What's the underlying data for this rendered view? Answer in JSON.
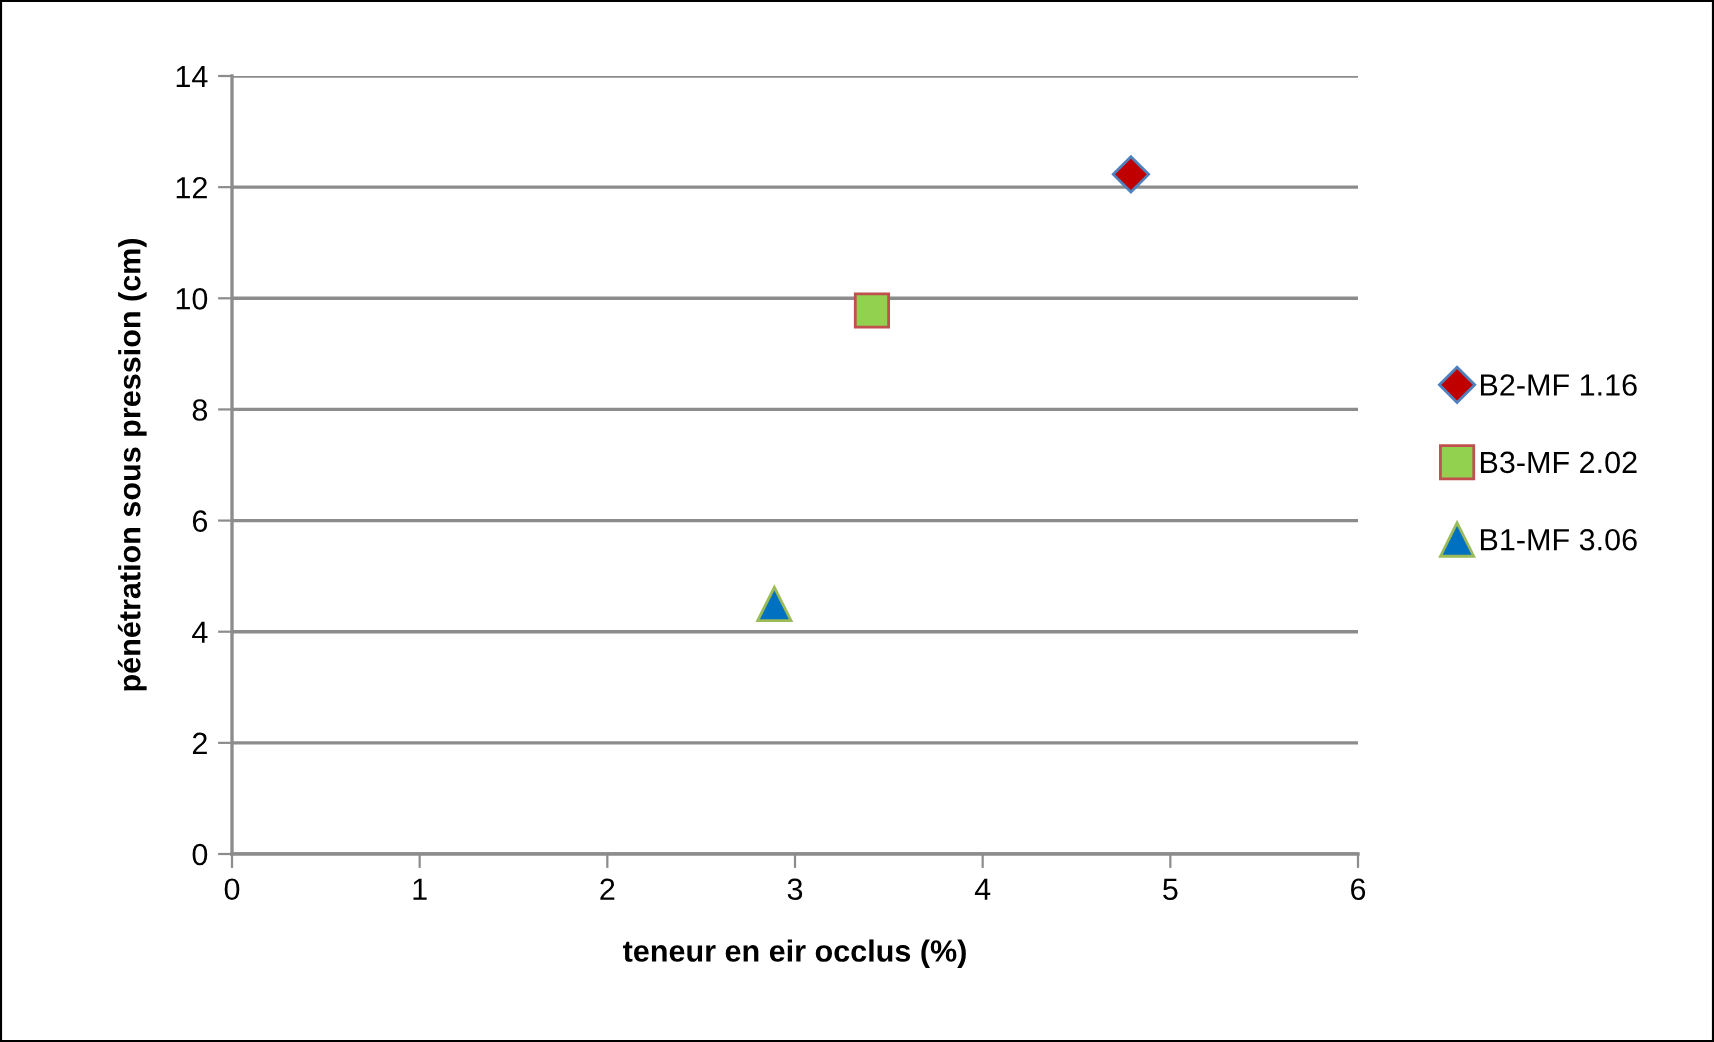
{
  "chart_data": {
    "type": "scatter",
    "xlabel": "teneur en eir occlus (%)",
    "ylabel": "pénétration sous pression (cm)",
    "xlim": [
      0,
      6
    ],
    "xticks": [
      0,
      1,
      2,
      3,
      4,
      5,
      6
    ],
    "ylim": [
      0,
      14
    ],
    "yticks": [
      0,
      2,
      4,
      6,
      8,
      10,
      12,
      14
    ],
    "grid": "y",
    "legend": "right",
    "series": [
      {
        "name": "B2-MF 1.16",
        "color": "#c00000",
        "marker": "diamond",
        "x": [
          4.79
        ],
        "values": [
          12.23
        ]
      },
      {
        "name": "B3-MF 2.02",
        "color": "#92d050",
        "marker": "square",
        "x": [
          3.41
        ],
        "values": [
          9.78
        ]
      },
      {
        "name": "B1-MF 3.06",
        "color": "#0070c0",
        "marker": "triangle",
        "x": [
          2.89
        ],
        "values": [
          4.5
        ]
      }
    ]
  }
}
